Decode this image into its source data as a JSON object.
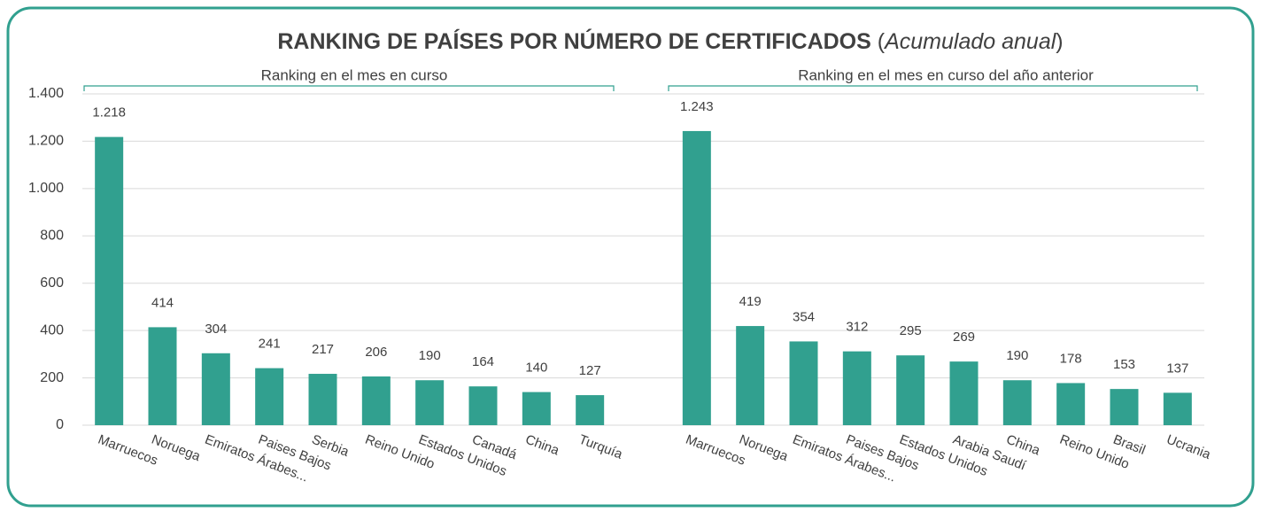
{
  "chart_data": {
    "type": "bar",
    "title": "RANKING DE PAÍSES POR NÚMERO DE CERTIFICADOS",
    "subtitle": [
      "(",
      "Acumulado anual",
      ")"
    ],
    "annotations": [
      "Ranking en el mes en curso",
      "Ranking en el mes en curso del año anterior"
    ],
    "categories": [
      "Marruecos",
      "Noruega",
      "Emiratos Árabes...",
      "Paises Bajos",
      "Serbia",
      "Reino Unido",
      "Estados Unidos",
      "Canadá",
      "China",
      "Turquía",
      null,
      "Marruecos",
      "Noruega",
      "Emiratos Árabes...",
      "Paises Bajos",
      "Estados Unidos",
      "Arabia Saudí",
      "China",
      "Reino Unido",
      "Brasil",
      "Ucrania"
    ],
    "values": [
      1218,
      414,
      304,
      241,
      217,
      206,
      190,
      164,
      140,
      127,
      null,
      1243,
      419,
      354,
      312,
      295,
      269,
      190,
      178,
      153,
      137
    ],
    "value_labels": [
      "1.218",
      "414",
      "304",
      "241",
      "217",
      "206",
      "190",
      "164",
      "140",
      "127",
      null,
      "1.243",
      "419",
      "354",
      "312",
      "295",
      "269",
      "190",
      "178",
      "153",
      "137"
    ],
    "color": "#31a08f",
    "ylim": [
      0,
      1400
    ],
    "yticks": [
      0,
      200,
      400,
      600,
      800,
      {
        "value": 1000,
        "label": "1.000"
      },
      {
        "value": 1200,
        "label": "1.200"
      },
      {
        "value": 1400,
        "label": "1.400"
      }
    ],
    "grid": true
  }
}
